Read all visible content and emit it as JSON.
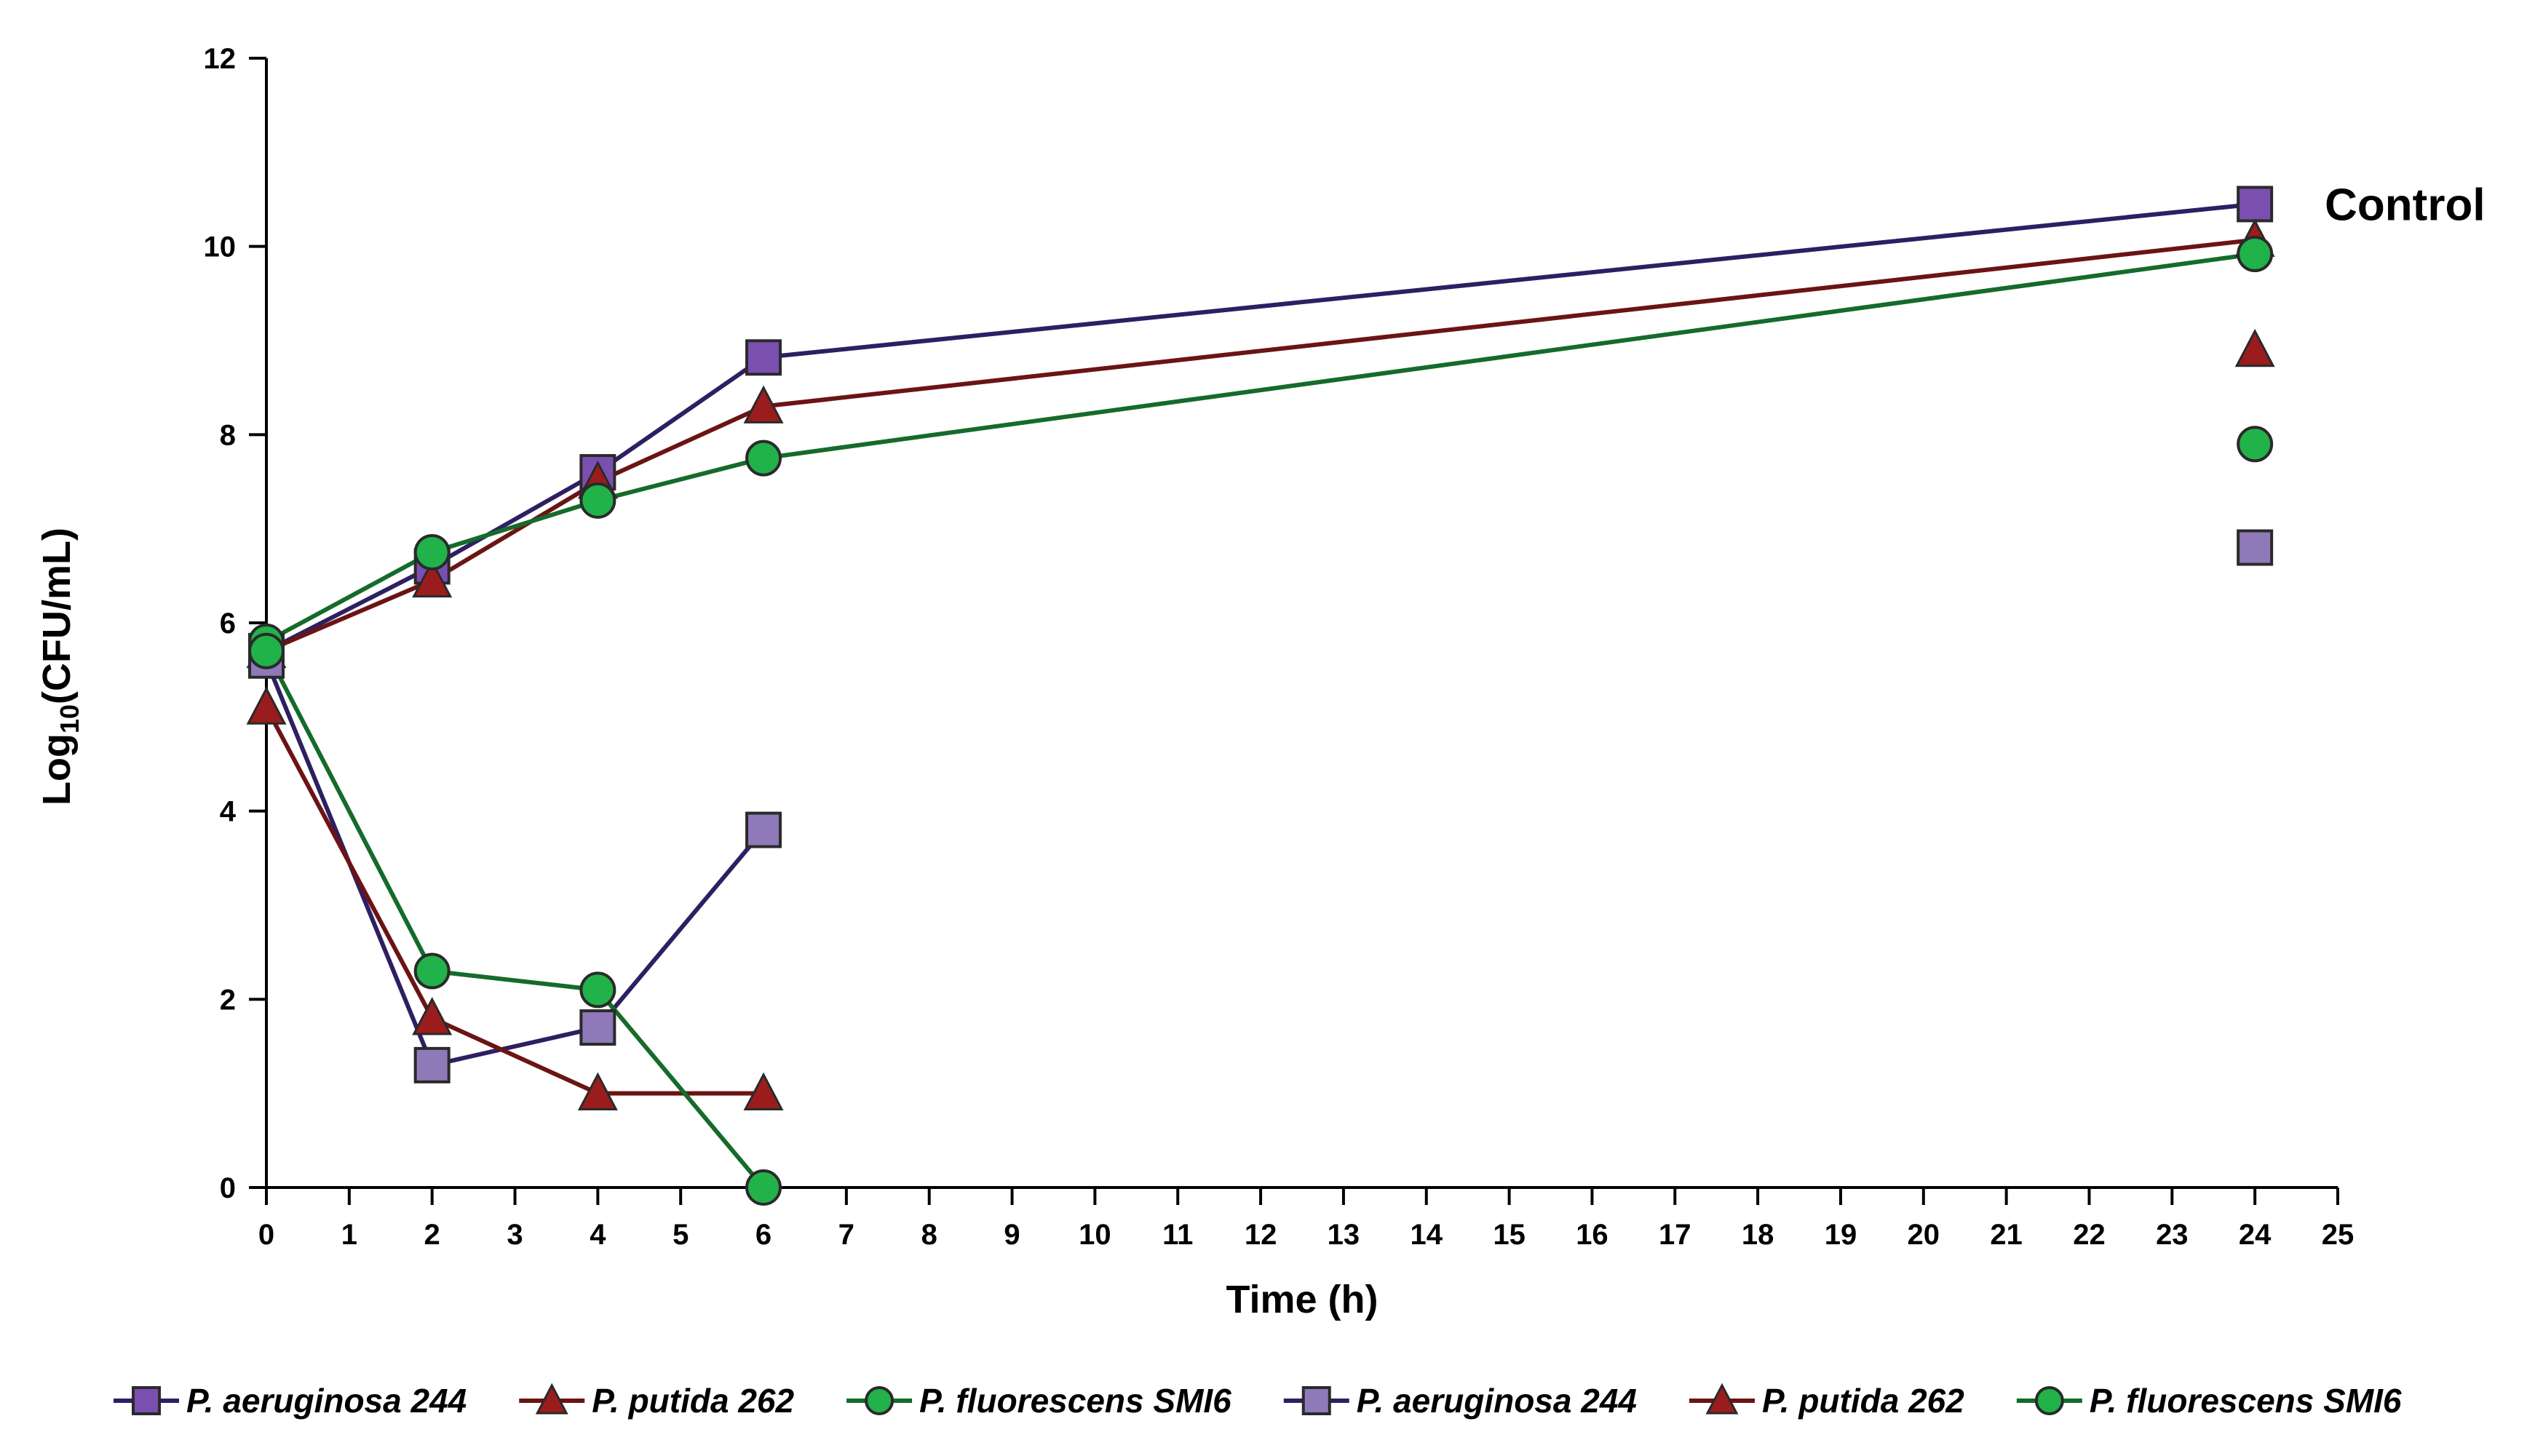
{
  "chart_data": {
    "type": "line",
    "title": "",
    "xlabel": "Time (h)",
    "ylabel_main": "Log",
    "ylabel_sub": "10",
    "ylabel_rest": "(CFU/mL)",
    "xlim": [
      0,
      25
    ],
    "ylim": [
      0,
      12
    ],
    "x_ticks": [
      0,
      1,
      2,
      3,
      4,
      5,
      6,
      7,
      8,
      9,
      10,
      11,
      12,
      13,
      14,
      15,
      16,
      17,
      18,
      19,
      20,
      21,
      22,
      23,
      24,
      25
    ],
    "y_ticks": [
      0,
      2,
      4,
      6,
      8,
      10,
      12
    ],
    "grid": false,
    "annotation": "Control",
    "legend_position": "bottom",
    "colors": {
      "purple": "#7b4fb0",
      "purple_light": "#8f79b8",
      "purple_line": "#2e1f63",
      "red": "#9b1c1c",
      "red_line": "#6b1414",
      "green": "#21b24a",
      "green_line": "#156b2a",
      "marker_edge": "#2a2a2a"
    },
    "series": [
      {
        "name": "P. aeruginosa 244",
        "group": "control",
        "marker": "square",
        "fill": "#7b4fb0",
        "line": "#2e1f63",
        "points": [
          [
            0,
            5.7
          ],
          [
            2,
            6.6
          ],
          [
            4,
            7.6
          ],
          [
            6,
            8.82
          ],
          [
            24,
            10.45
          ]
        ]
      },
      {
        "name": "P. putida 262",
        "group": "control",
        "marker": "triangle",
        "fill": "#9b1c1c",
        "line": "#6b1414",
        "points": [
          [
            0,
            5.7
          ],
          [
            2,
            6.45
          ],
          [
            4,
            7.5
          ],
          [
            6,
            8.3
          ],
          [
            24,
            10.07
          ]
        ]
      },
      {
        "name": "P. fluorescens SMI6",
        "group": "control",
        "marker": "circle",
        "fill": "#21b24a",
        "line": "#156b2a",
        "points": [
          [
            0,
            5.8
          ],
          [
            2,
            6.75
          ],
          [
            4,
            7.3
          ],
          [
            6,
            7.75
          ],
          [
            24,
            9.92
          ]
        ]
      },
      {
        "name": "P. aeruginosa 244",
        "group": "treated",
        "marker": "square",
        "fill": "#8f79b8",
        "line": "#2e1f63",
        "points": [
          [
            0,
            5.6
          ],
          [
            2,
            1.3
          ],
          [
            4,
            1.7
          ],
          [
            6,
            3.8
          ]
        ],
        "isolated_points": [
          [
            24,
            6.8
          ]
        ]
      },
      {
        "name": "P. putida 262",
        "group": "treated",
        "marker": "triangle",
        "fill": "#9b1c1c",
        "line": "#6b1414",
        "points": [
          [
            0,
            5.1
          ],
          [
            2,
            1.8
          ],
          [
            4,
            1.0
          ],
          [
            6,
            1.0
          ]
        ],
        "isolated_points": [
          [
            24,
            8.9
          ]
        ]
      },
      {
        "name": "P. fluorescens SMI6",
        "group": "treated",
        "marker": "circle",
        "fill": "#21b24a",
        "line": "#156b2a",
        "points": [
          [
            0,
            5.7
          ],
          [
            2,
            2.3
          ],
          [
            4,
            2.1
          ],
          [
            6,
            0.0
          ]
        ],
        "isolated_points": [
          [
            24,
            7.9
          ]
        ]
      }
    ]
  }
}
